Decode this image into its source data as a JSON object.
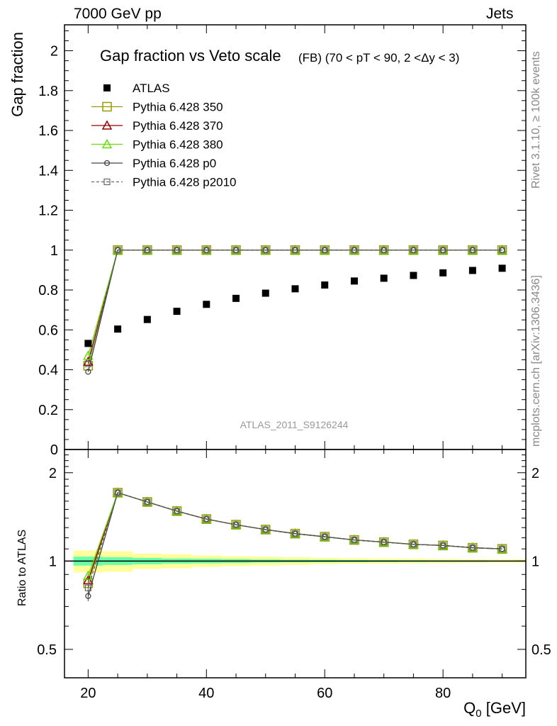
{
  "header": {
    "left": "7000 GeV pp",
    "right": "Jets"
  },
  "side_labels": {
    "rivet": "Rivet 3.1.10, ≥ 100k events",
    "mcplots": "mcplots.cern.ch [arXiv:1306.3436]"
  },
  "watermark": "ATLAS_2011_S9126244",
  "chart_data": [
    {
      "type": "scatter",
      "panel": "main",
      "title": "Gap fraction vs Veto scale",
      "subtitle": "(FB) (70 < pT <  90, 2 <Δy < 3)",
      "ylabel": "Gap fraction",
      "xlabel": "Q_0 [GeV]",
      "xlim": [
        16,
        94
      ],
      "ylim": [
        0,
        2.13
      ],
      "xticks": [
        20,
        40,
        60,
        80
      ],
      "yticks": [
        0,
        0.2,
        0.4,
        0.6,
        0.8,
        1,
        1.2,
        1.4,
        1.6,
        1.8,
        2
      ],
      "x": [
        20,
        25,
        30,
        35,
        40,
        45,
        50,
        55,
        60,
        65,
        70,
        75,
        80,
        85,
        90
      ],
      "legend_position": "top-left",
      "series": [
        {
          "name": "ATLAS",
          "color": "#000000",
          "marker": "filled-square",
          "line": "none",
          "values": [
            0.532,
            0.604,
            0.652,
            0.693,
            0.728,
            0.758,
            0.784,
            0.806,
            0.825,
            0.845,
            0.859,
            0.873,
            0.886,
            0.898,
            0.909
          ]
        },
        {
          "name": "Pythia 6.428 350",
          "color": "#999900",
          "marker": "open-square",
          "line": "solid",
          "values": [
            0.42,
            1,
            1,
            1,
            1,
            1,
            1,
            1,
            1,
            1,
            1,
            1,
            1,
            1,
            1
          ]
        },
        {
          "name": "Pythia 6.428 370",
          "color": "#990000",
          "marker": "open-triangle",
          "line": "solid",
          "values": [
            0.44,
            1,
            1,
            1,
            1,
            1,
            1,
            1,
            1,
            1,
            1,
            1,
            1,
            1,
            1
          ]
        },
        {
          "name": "Pythia 6.428 380",
          "color": "#66dd00",
          "marker": "open-triangle",
          "line": "solid",
          "values": [
            0.47,
            1,
            1,
            1,
            1,
            1,
            1,
            1,
            1,
            1,
            1,
            1,
            1,
            1,
            1
          ]
        },
        {
          "name": "Pythia 6.428 p0",
          "color": "#444444",
          "marker": "open-circle",
          "line": "solid",
          "values": [
            0.39,
            1,
            1,
            1,
            1,
            1,
            1,
            1,
            1,
            1,
            1,
            1,
            1,
            1,
            1
          ]
        },
        {
          "name": "Pythia 6.428 p2010",
          "color": "#666666",
          "marker": "open-square-small",
          "line": "dashed",
          "values": [
            0.43,
            1,
            1,
            1,
            1,
            1,
            1,
            1,
            1,
            1,
            1,
            1,
            1,
            1,
            1
          ]
        }
      ]
    },
    {
      "type": "line",
      "panel": "ratio",
      "ylabel": "Ratio to ATLAS",
      "ylim": [
        0.4,
        2.4
      ],
      "yscale": "log",
      "yticks": [
        0.5,
        1,
        2
      ],
      "xticks": [
        20,
        40,
        60,
        80
      ],
      "x": [
        20,
        25,
        30,
        35,
        40,
        45,
        50,
        55,
        60,
        65,
        70,
        75,
        80,
        85,
        90
      ],
      "band": {
        "x_edges": [
          17.5,
          22.5,
          27.5,
          32.5,
          37.5,
          42.5,
          47.5,
          52.5,
          57.5,
          62.5,
          67.5,
          72.5,
          77.5,
          82.5,
          87.5,
          94
        ],
        "outer": [
          0.085,
          0.08,
          0.06,
          0.055,
          0.045,
          0.04,
          0.035,
          0.03,
          0.025,
          0.022,
          0.02,
          0.018,
          0.016,
          0.014,
          0.012
        ],
        "inner": [
          0.035,
          0.03,
          0.025,
          0.02,
          0.018,
          0.015,
          0.012,
          0.01,
          0.009,
          0.008,
          0.007,
          0.006,
          0.005,
          0.005,
          0.004
        ],
        "outer_color": "#ffff99",
        "inner_color": "#66ffaa"
      },
      "series": [
        {
          "name": "Pythia 6.428 350",
          "color": "#999900",
          "marker": "open-square",
          "line": "solid",
          "values": [
            0.84,
            1.71,
            1.59,
            1.48,
            1.39,
            1.33,
            1.28,
            1.24,
            1.21,
            1.18,
            1.16,
            1.14,
            1.13,
            1.11,
            1.1
          ]
        },
        {
          "name": "Pythia 6.428 370",
          "color": "#990000",
          "marker": "open-triangle",
          "line": "solid",
          "values": [
            0.86,
            1.71,
            1.59,
            1.48,
            1.39,
            1.33,
            1.28,
            1.24,
            1.21,
            1.18,
            1.16,
            1.14,
            1.13,
            1.11,
            1.1
          ]
        },
        {
          "name": "Pythia 6.428 380",
          "color": "#66dd00",
          "marker": "open-triangle",
          "line": "solid",
          "values": [
            0.89,
            1.71,
            1.59,
            1.48,
            1.39,
            1.33,
            1.28,
            1.24,
            1.21,
            1.18,
            1.16,
            1.14,
            1.13,
            1.11,
            1.1
          ]
        },
        {
          "name": "Pythia 6.428 p0",
          "color": "#444444",
          "marker": "open-circle",
          "line": "solid",
          "values": [
            0.76,
            1.71,
            1.59,
            1.48,
            1.39,
            1.33,
            1.28,
            1.24,
            1.21,
            1.18,
            1.16,
            1.14,
            1.13,
            1.11,
            1.1
          ]
        },
        {
          "name": "Pythia 6.428 p2010",
          "color": "#666666",
          "marker": "open-square-small",
          "line": "dashed",
          "values": [
            0.81,
            1.71,
            1.59,
            1.48,
            1.39,
            1.33,
            1.28,
            1.24,
            1.21,
            1.18,
            1.16,
            1.14,
            1.13,
            1.11,
            1.1
          ]
        }
      ]
    }
  ]
}
